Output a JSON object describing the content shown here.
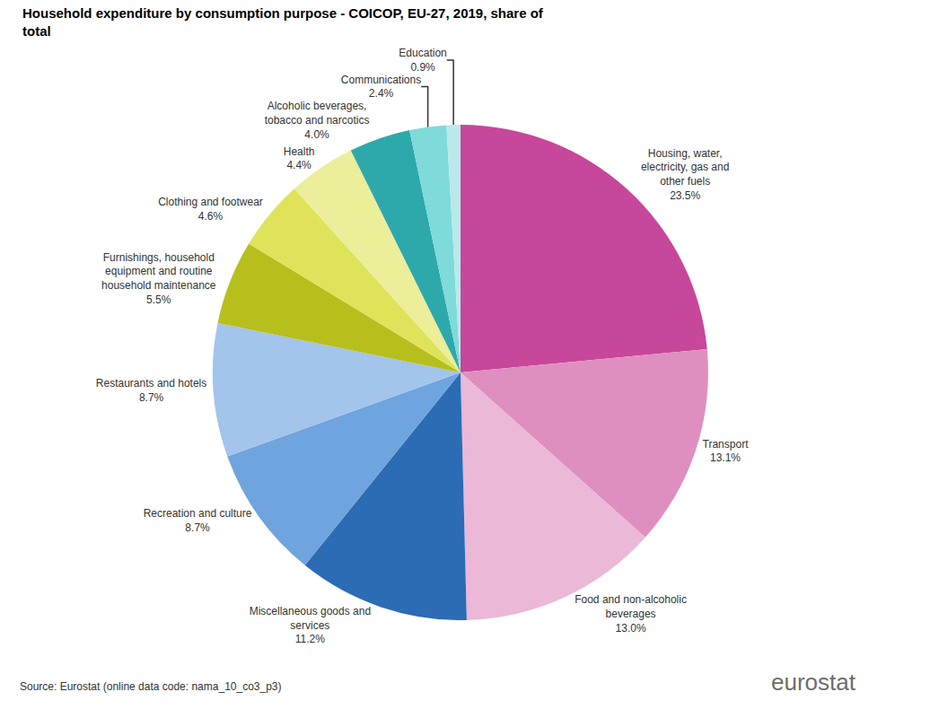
{
  "chart_data": {
    "type": "pie",
    "title": "Household expenditure by consumption purpose - COICOP, EU-27, 2019, share of total",
    "categories": [
      "Housing, water, electricity, gas and other fuels",
      "Transport",
      "Food and non-alcoholic beverages",
      "Miscellaneous goods and services",
      "Recreation and culture",
      "Restaurants and hotels",
      "Furnishings, household equipment and routine household maintenance",
      "Clothing and footwear",
      "Health",
      "Alcoholic beverages, tobacco and narcotics",
      "Communications",
      "Education"
    ],
    "values": [
      23.5,
      13.1,
      13.0,
      11.2,
      8.7,
      8.7,
      5.5,
      4.6,
      4.4,
      4.0,
      2.4,
      0.9
    ],
    "value_labels": [
      "23.5%",
      "13.1%",
      "13.0%",
      "11.2%",
      "8.7%",
      "8.7%",
      "5.5%",
      "4.6%",
      "4.4%",
      "4.0%",
      "2.4%",
      "0.9%"
    ],
    "colors": [
      "#c7479a",
      "#de8fbf",
      "#ebb8d8",
      "#2b6cb5",
      "#6fa4df",
      "#a3c4eb",
      "#b7bf1d",
      "#dfe35a",
      "#ecee9a",
      "#2ea9ab",
      "#7fdada",
      "#b9e9ea"
    ],
    "data_labels": true,
    "annotations": [
      "Source: Eurostat (online data code: nama_10_co3_p3)",
      "eurostat"
    ]
  }
}
